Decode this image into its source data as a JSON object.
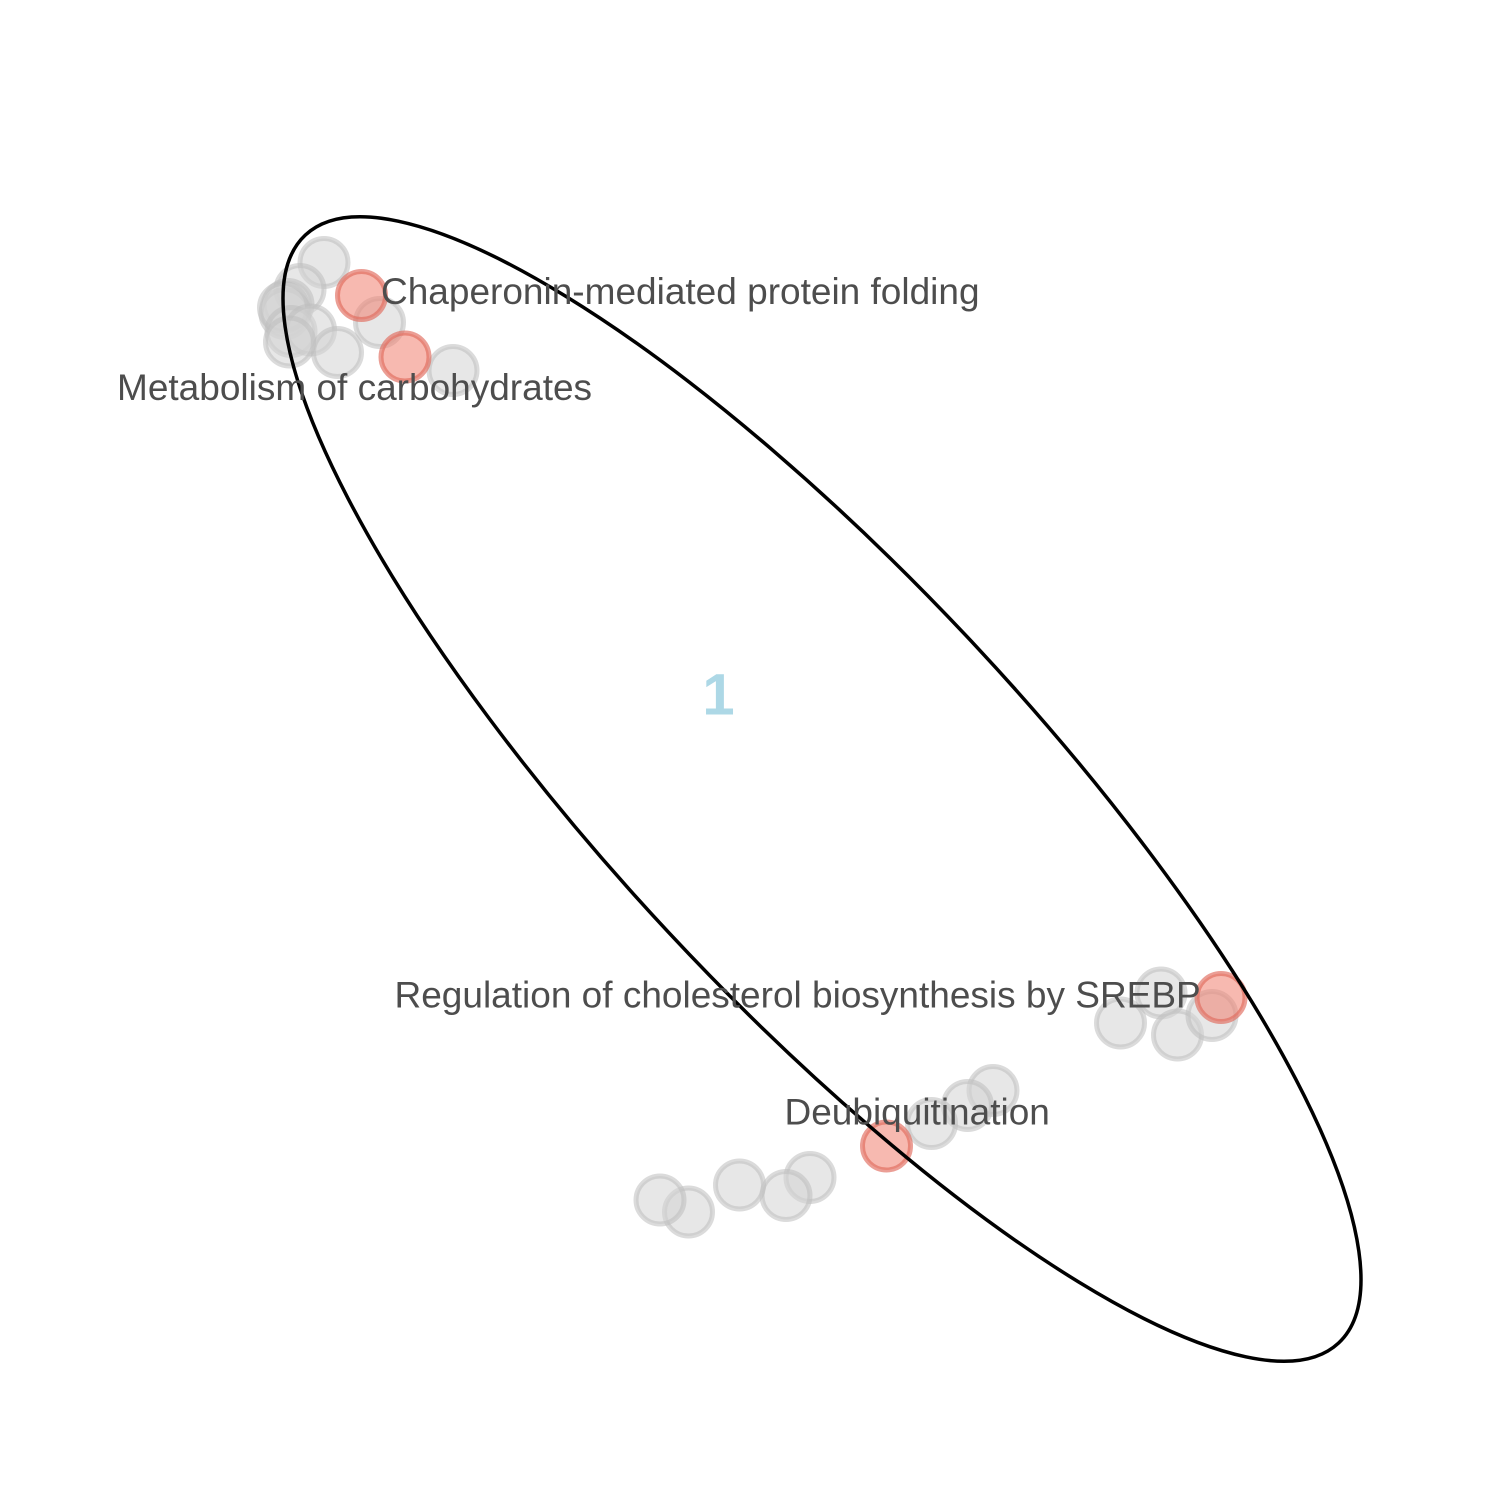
{
  "chart_data": {
    "type": "scatter",
    "title": "",
    "xlabel": "",
    "ylabel": "",
    "xlim": [
      0,
      100
    ],
    "ylim": [
      0,
      100
    ],
    "grid": false,
    "colors": {
      "background": "#d3d3d3",
      "highlighted": "#f08070",
      "cluster_label": "#add8e6",
      "ellipse": "#000000",
      "label_text": "#4d4d4d"
    },
    "clusters": [
      {
        "name": "1",
        "center": [
          47.9,
          53.4
        ],
        "ellipse": {
          "cx": 54.8,
          "cy": 47.4,
          "rx": 50.5,
          "ry": 14.0,
          "angle_deg": -47
        }
      }
    ],
    "series": [
      {
        "name": "background",
        "highlight": false,
        "points": [
          {
            "x": 21.6,
            "y": 82.5
          },
          {
            "x": 20.0,
            "y": 80.7
          },
          {
            "x": 19.2,
            "y": 79.7
          },
          {
            "x": 19.0,
            "y": 79.1
          },
          {
            "x": 18.9,
            "y": 79.5
          },
          {
            "x": 19.4,
            "y": 77.9
          },
          {
            "x": 20.7,
            "y": 78.0
          },
          {
            "x": 22.5,
            "y": 76.5
          },
          {
            "x": 25.3,
            "y": 78.5
          },
          {
            "x": 19.3,
            "y": 77.2
          },
          {
            "x": 30.2,
            "y": 75.3
          },
          {
            "x": 77.4,
            "y": 33.8
          },
          {
            "x": 74.7,
            "y": 31.8
          },
          {
            "x": 78.5,
            "y": 31.0
          },
          {
            "x": 80.8,
            "y": 32.3
          },
          {
            "x": 66.2,
            "y": 27.3
          },
          {
            "x": 64.5,
            "y": 26.3
          },
          {
            "x": 62.1,
            "y": 25.1
          },
          {
            "x": 54.0,
            "y": 21.5
          },
          {
            "x": 52.4,
            "y": 20.3
          },
          {
            "x": 49.3,
            "y": 21.0
          },
          {
            "x": 45.9,
            "y": 19.2
          },
          {
            "x": 44.0,
            "y": 20.0
          }
        ]
      },
      {
        "name": "highlighted",
        "highlight": true,
        "points": [
          {
            "x": 24.1,
            "y": 80.3,
            "label": "Chaperonin-mediated protein folding",
            "label_dx": 1.3,
            "label_dy": 0.1
          },
          {
            "x": 27.0,
            "y": 76.2,
            "label": "Metabolism of carbohydrates",
            "label_dx": -19.2,
            "label_dy": -2.2
          },
          {
            "x": 81.4,
            "y": 33.5,
            "label": "Regulation of cholesterol biosynthesis by SREBP",
            "label_dx": -55.1,
            "label_dy": 0.0
          },
          {
            "x": 59.1,
            "y": 23.6,
            "label": "Deubiquitination",
            "label_dx": -6.8,
            "label_dy": 2.1
          }
        ]
      }
    ]
  }
}
